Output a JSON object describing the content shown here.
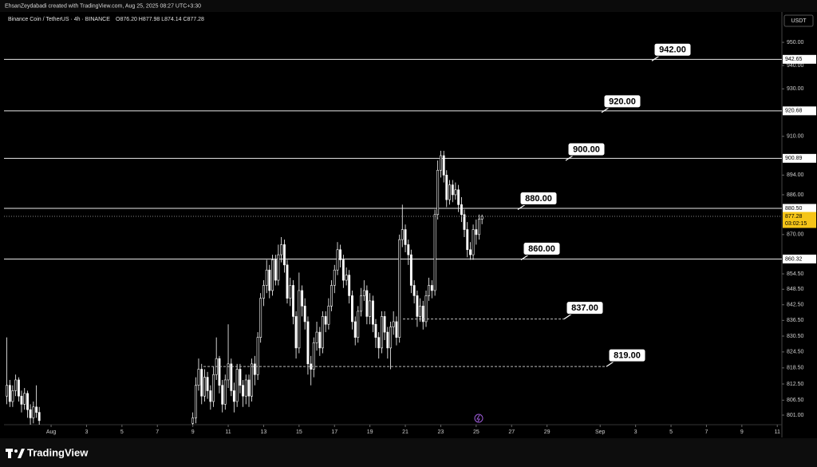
{
  "chart_data": {
    "type": "candlestick",
    "header": "EhsanZeydabadi created with TradingView.com, Aug 25, 2025 08:27 UTC+3:30",
    "title": "Binance Coin / TetherUS · 4h · BINANCE",
    "ohlc_legend": "O876.20 H877.98 L874.14 C877.28",
    "currency": "USDT",
    "footer": "TradingView",
    "log_scale": true,
    "up_color": "#000000",
    "down_color": "#ffffff",
    "border_color": "#ffffff",
    "xlim": [
      -1.66,
      42.26
    ],
    "ylim": [
      797.5,
      963.3
    ],
    "xticks": [
      {
        "value": 1,
        "label": "Aug"
      },
      3,
      5,
      7,
      9,
      11,
      13,
      15,
      17,
      19,
      21,
      23,
      25,
      27,
      29,
      {
        "value": 32,
        "label": "Sep"
      },
      {
        "value": 34,
        "label": "3"
      },
      {
        "value": 36,
        "label": "5"
      },
      {
        "value": 38,
        "label": "7"
      },
      {
        "value": 40,
        "label": "9"
      },
      {
        "value": 42,
        "label": "11"
      }
    ],
    "yticks": [
      {
        "value": 950,
        "label": "950.00"
      },
      {
        "value": 940,
        "label": "940.00"
      },
      {
        "value": 930,
        "label": "930.00"
      },
      {
        "value": 910,
        "label": "910.00"
      },
      {
        "value": 894,
        "label": "894.00"
      },
      {
        "value": 886,
        "label": "886.00"
      },
      {
        "value": 870,
        "label": "870.00"
      },
      {
        "value": 854.5,
        "label": "854.50"
      },
      {
        "value": 848.5,
        "label": "848.50"
      },
      {
        "value": 842.5,
        "label": "842.50"
      },
      {
        "value": 836.5,
        "label": "836.50"
      },
      {
        "value": 830.5,
        "label": "830.50"
      },
      {
        "value": 824.5,
        "label": "824.50"
      },
      {
        "value": 818.5,
        "label": "818.50"
      },
      {
        "value": 812.5,
        "label": "812.50"
      },
      {
        "value": 806.5,
        "label": "806.50"
      },
      {
        "value": 801,
        "label": "801.00"
      }
    ],
    "price_lines": [
      {
        "value": 942.65,
        "label": "942.65"
      },
      {
        "value": 920.68,
        "label": "920.68"
      },
      {
        "value": 900.89,
        "label": "900.89"
      },
      {
        "value": 880.5,
        "label": "880.50"
      },
      {
        "value": 860.32,
        "label": "860.32"
      }
    ],
    "last_price": {
      "value": 877.28,
      "label": "877.28",
      "countdown": "03:02:15",
      "color": "#f5c518"
    },
    "annotations": [
      {
        "value": 942,
        "label": "942.00"
      },
      {
        "value": 920,
        "label": "920.00"
      },
      {
        "value": 900,
        "label": "900.00"
      },
      {
        "value": 880,
        "label": "880.00"
      },
      {
        "value": 860,
        "label": "860.00"
      },
      {
        "value": 837,
        "label": "837.00",
        "style": "dashed"
      },
      {
        "value": 819,
        "label": "819.00",
        "style": "dashed"
      }
    ],
    "x": [
      -1.5,
      -1.33,
      -1.17,
      -1,
      -0.83,
      -0.67,
      -0.5,
      -0.33,
      -0.17,
      0,
      0.17,
      0.33,
      9,
      9.17,
      9.33,
      9.5,
      9.67,
      9.83,
      10,
      10.17,
      10.33,
      10.5,
      10.67,
      10.83,
      11,
      11.17,
      11.33,
      11.5,
      11.67,
      11.83,
      12,
      12.17,
      12.33,
      12.5,
      12.67,
      12.83,
      13,
      13.17,
      13.33,
      13.5,
      13.67,
      13.83,
      14,
      14.17,
      14.33,
      14.5,
      14.67,
      14.83,
      15,
      15.17,
      15.33,
      15.5,
      15.67,
      15.83,
      16,
      16.17,
      16.33,
      16.5,
      16.67,
      16.83,
      17,
      17.17,
      17.33,
      17.5,
      17.67,
      17.83,
      18,
      18.17,
      18.33,
      18.5,
      18.67,
      18.83,
      19,
      19.17,
      19.33,
      19.5,
      19.67,
      19.83,
      20,
      20.17,
      20.33,
      20.5,
      20.67,
      20.83,
      21,
      21.17,
      21.33,
      21.5,
      21.67,
      21.83,
      22,
      22.17,
      22.33,
      22.5,
      22.67,
      22.83,
      23,
      23.17,
      23.33,
      23.5,
      23.67,
      23.83,
      24,
      24.17,
      24.33,
      24.5,
      24.67,
      24.83,
      25,
      25.17,
      25.33
    ],
    "open": [
      808,
      812,
      806,
      810,
      814,
      808,
      805,
      809,
      803,
      800,
      804,
      802,
      798,
      800,
      812,
      818,
      808,
      815,
      810,
      806,
      816,
      822,
      812,
      805,
      814,
      820,
      810,
      806,
      818,
      812,
      808,
      814,
      808,
      820,
      816,
      830,
      845,
      850,
      856,
      848,
      860,
      852,
      862,
      866,
      858,
      845,
      850,
      838,
      826,
      848,
      842,
      836,
      820,
      818,
      828,
      832,
      826,
      838,
      835,
      842,
      850,
      856,
      864,
      860,
      852,
      854,
      846,
      836,
      830,
      840,
      846,
      848,
      838,
      844,
      835,
      830,
      826,
      838,
      832,
      826,
      834,
      836,
      830,
      868,
      872,
      866,
      862,
      850,
      846,
      838,
      842,
      836,
      846,
      850,
      848,
      878,
      896,
      902,
      894,
      884,
      890,
      886,
      888,
      882,
      878,
      872,
      864,
      862,
      872,
      870,
      876.2
    ],
    "high": [
      830,
      814,
      812,
      816,
      815,
      810,
      811,
      810,
      805,
      806,
      812,
      804,
      802,
      815,
      822,
      820,
      818,
      817,
      812,
      819,
      830,
      823,
      814,
      816,
      835,
      822,
      813,
      820,
      820,
      814,
      816,
      816,
      822,
      823,
      832,
      847,
      852,
      860,
      858,
      862,
      862,
      866,
      869,
      868,
      860,
      853,
      852,
      840,
      855,
      850,
      845,
      838,
      823,
      830,
      836,
      834,
      840,
      840,
      845,
      852,
      858,
      867,
      866,
      862,
      857,
      856,
      848,
      838,
      842,
      849,
      852,
      850,
      847,
      846,
      837,
      832,
      840,
      840,
      834,
      836,
      840,
      838,
      870,
      882,
      874,
      868,
      864,
      852,
      848,
      845,
      844,
      848,
      853,
      852,
      880,
      900,
      904,
      904,
      896,
      892,
      892,
      891,
      890,
      885,
      880,
      875,
      867,
      874,
      876,
      878,
      877.98
    ],
    "low": [
      805,
      804,
      804,
      808,
      806,
      802,
      803,
      800,
      797,
      798,
      800,
      797,
      795,
      798,
      810,
      805,
      806,
      807,
      803,
      804,
      814,
      809,
      802,
      803,
      811,
      808,
      802,
      804,
      809,
      804,
      805,
      804,
      806,
      812,
      814,
      828,
      842,
      847,
      845,
      846,
      850,
      850,
      859,
      855,
      843,
      842,
      835,
      822,
      824,
      838,
      833,
      816,
      812,
      815,
      825,
      823,
      824,
      832,
      833,
      840,
      847,
      854,
      857,
      849,
      850,
      843,
      833,
      827,
      828,
      838,
      844,
      835,
      835,
      832,
      826,
      822,
      824,
      829,
      822,
      818,
      831,
      827,
      828,
      865,
      863,
      858,
      847,
      843,
      834,
      836,
      833,
      834,
      844,
      845,
      846,
      876,
      893,
      891,
      881,
      882,
      883,
      884,
      879,
      875,
      869,
      861,
      860,
      860,
      866,
      868,
      874.14
    ],
    "close": [
      812,
      806,
      810,
      814,
      808,
      805,
      809,
      803,
      800,
      804,
      802,
      799,
      800,
      812,
      818,
      808,
      815,
      810,
      806,
      816,
      822,
      812,
      805,
      814,
      820,
      810,
      806,
      818,
      812,
      808,
      814,
      808,
      820,
      816,
      830,
      845,
      850,
      856,
      848,
      860,
      852,
      862,
      866,
      858,
      845,
      850,
      838,
      826,
      848,
      842,
      836,
      820,
      818,
      828,
      832,
      826,
      838,
      835,
      842,
      850,
      856,
      864,
      860,
      852,
      854,
      846,
      836,
      830,
      840,
      846,
      848,
      838,
      844,
      835,
      830,
      826,
      838,
      832,
      826,
      834,
      836,
      830,
      868,
      872,
      866,
      862,
      850,
      846,
      838,
      842,
      836,
      846,
      850,
      848,
      878,
      896,
      902,
      894,
      884,
      890,
      886,
      888,
      882,
      878,
      872,
      864,
      862,
      872,
      870,
      876.2,
      877.28
    ]
  }
}
